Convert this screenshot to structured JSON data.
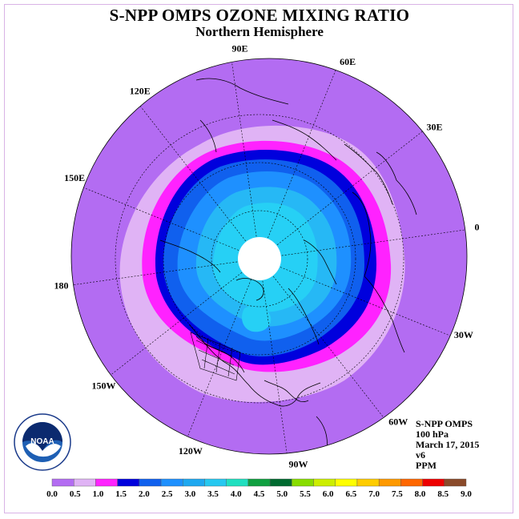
{
  "title": "S-NPP OMPS OZONE MIXING RATIO",
  "subtitle": "Northern Hemisphere",
  "info": {
    "instrument": "S-NPP OMPS",
    "level": "100 hPa",
    "date": "March 17, 2015",
    "version": "v6",
    "units": "PPM"
  },
  "longitude_labels": [
    "90E",
    "60E",
    "30E",
    "0",
    "30W",
    "60W",
    "90W",
    "120W",
    "150W",
    "180",
    "150E",
    "120E"
  ],
  "logo": {
    "name": "noaa-logo",
    "text": "NOAA",
    "ring_text": "NATIONAL OCEANIC AND ATMOSPHERIC ADMINISTRATION · U.S. DEPARTMENT OF COMMERCE"
  },
  "colorbar": {
    "ticks": [
      "0.0",
      "0.5",
      "1.0",
      "1.5",
      "2.0",
      "2.5",
      "3.0",
      "3.5",
      "4.0",
      "4.5",
      "5.0",
      "5.5",
      "6.0",
      "6.5",
      "7.0",
      "7.5",
      "8.0",
      "8.5",
      "9.0"
    ],
    "colors": [
      "#b36cf2",
      "#e0b3f5",
      "#ff22ff",
      "#0000dd",
      "#1060ee",
      "#1e90ff",
      "#1ea8f0",
      "#26c8f0",
      "#20e0c0",
      "#10a040",
      "#006a30",
      "#88dd00",
      "#ccee00",
      "#ffff00",
      "#ffcc00",
      "#ff9900",
      "#ff6600",
      "#ee0000",
      "#8a4a2a"
    ]
  },
  "map_colors": {
    "background": "#b36cf2",
    "band_light": "#e0b3f5",
    "band_magenta": "#ff22ff",
    "band_dark": "#0000dd",
    "band_blue": "#1060ee",
    "band_mid": "#1e90ff",
    "band_light_blue": "#26b8f5",
    "band_cyan": "#26d0f5",
    "polar_cap": "#ffffff"
  }
}
